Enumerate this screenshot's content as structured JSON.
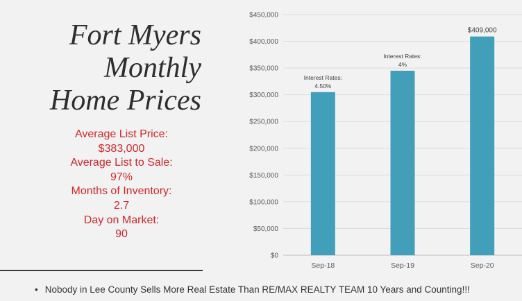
{
  "title": {
    "lines": [
      "Fort Myers",
      "Monthly",
      "Home Prices"
    ]
  },
  "stats": {
    "avg_list_price_label": "Average List Price:",
    "avg_list_price_value": "$383,000",
    "avg_list_to_sale_label": "Average List to Sale:",
    "avg_list_to_sale_value": "97%",
    "months_inventory_label": "Months of Inventory:",
    "months_inventory_value": "2.7",
    "days_on_market_label": "Day on Market:",
    "days_on_market_value": "90"
  },
  "footer": {
    "bullet": "•",
    "text": "Nobody  in Lee County Sells More Real Estate Than RE/MAX REALTY  TEAM  10 Years and Counting!!!"
  },
  "chart_data": {
    "type": "bar",
    "categories": [
      "Sep-18",
      "Sep-19",
      "Sep-20"
    ],
    "values": [
      305000,
      345000,
      409000
    ],
    "ylim": [
      0,
      450000
    ],
    "yticks": [
      0,
      50000,
      100000,
      150000,
      200000,
      250000,
      300000,
      350000,
      400000,
      450000
    ],
    "ytick_labels": [
      "$0",
      "$50,000",
      "$100,000",
      "$150,000",
      "$200,000",
      "$250,000",
      "$300,000",
      "$350,000",
      "$400,000",
      "$450,000"
    ],
    "annotations": [
      {
        "category": "Sep-18",
        "lines": [
          "Interest Rates:",
          "4.50%"
        ]
      },
      {
        "category": "Sep-19",
        "lines": [
          "Interest Rates:",
          "4%"
        ]
      },
      {
        "category": "Sep-20",
        "lines": [
          "$409,000"
        ]
      }
    ],
    "grid": true,
    "bar_color": "#429fba",
    "grid_color": "#dcdcdc"
  }
}
